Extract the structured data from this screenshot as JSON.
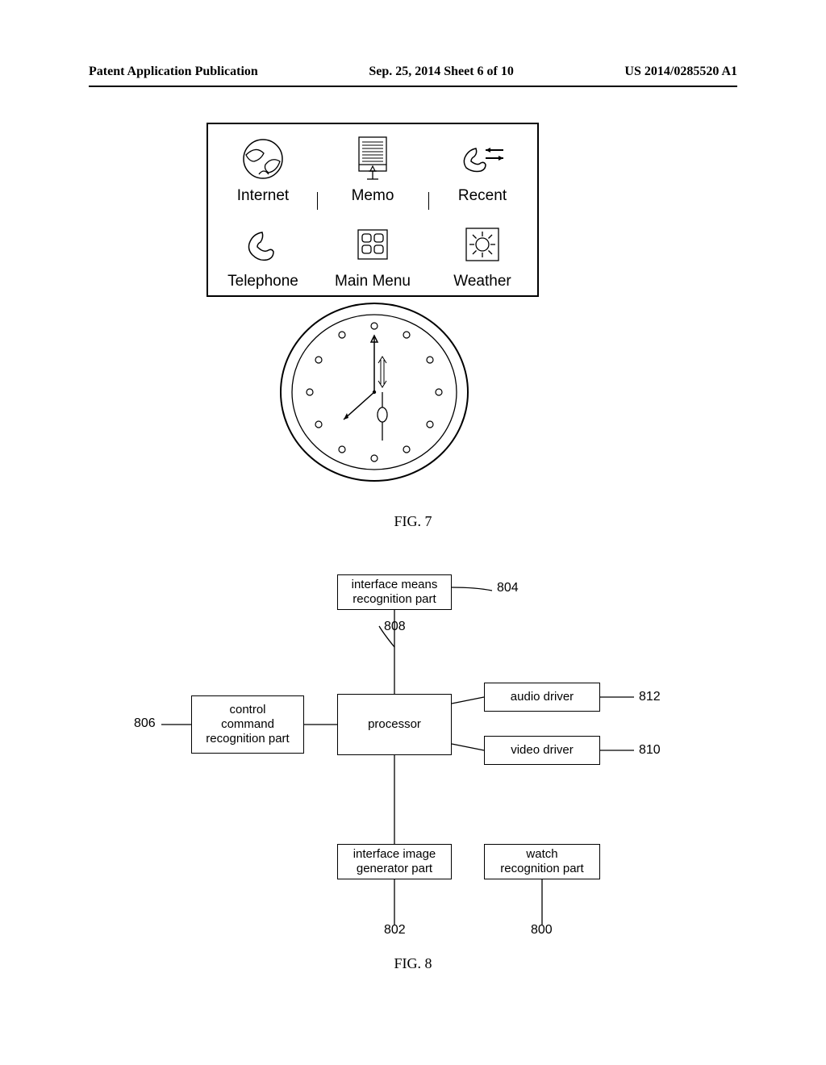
{
  "header": {
    "left": "Patent Application Publication",
    "center": "Sep. 25, 2014  Sheet 6 of 10",
    "right": "US 2014/0285520 A1"
  },
  "figure7": {
    "label": "FIG. 7",
    "menu": {
      "items": [
        {
          "id": "internet",
          "label": "Internet"
        },
        {
          "id": "memo",
          "label": "Memo"
        },
        {
          "id": "recent",
          "label": "Recent"
        },
        {
          "id": "telephone",
          "label": "Telephone"
        },
        {
          "id": "mainmenu",
          "label": "Main Menu"
        },
        {
          "id": "weather",
          "label": "Weather"
        }
      ]
    },
    "watch": {
      "outer_stroke": "#000000",
      "outer_stroke_width": 2,
      "hour_marker_radius": 3.5,
      "hour_marker_count": 12
    }
  },
  "figure8": {
    "label": "FIG. 8",
    "blocks": {
      "interface_means": {
        "text": "interface means\nrecognition part",
        "ref": "804"
      },
      "control_command": {
        "text": "control\ncommand\nrecognition part",
        "ref": "806"
      },
      "processor": {
        "text": "processor",
        "ref": "808"
      },
      "audio_driver": {
        "text": "audio driver",
        "ref": "812"
      },
      "video_driver": {
        "text": "video driver",
        "ref": "810"
      },
      "interface_image": {
        "text": "interface image\ngenerator part",
        "ref": "802"
      },
      "watch_recognition": {
        "text": "watch\nrecognition part",
        "ref": "800"
      }
    }
  }
}
